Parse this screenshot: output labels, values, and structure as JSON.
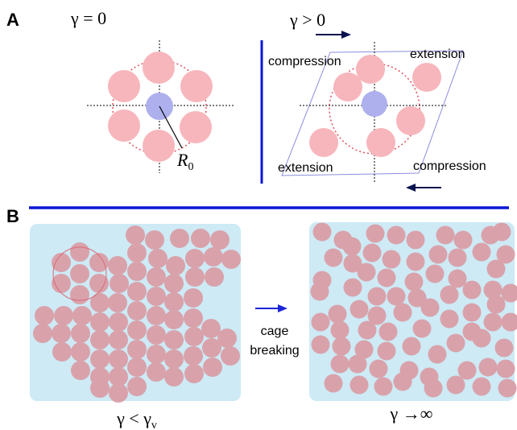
{
  "panel_a": {
    "label": "A",
    "left_title": "γ = 0",
    "right_title": "γ > 0",
    "radius_label": "R",
    "radius_subscript": "0",
    "compression_top": "compression",
    "extension_top": "extension",
    "extension_bottom": "extension",
    "compression_bottom": "compression"
  },
  "panel_b": {
    "label": "B",
    "arrow_label_line1": "cage",
    "arrow_label_line2": "breaking",
    "left_caption": "γ < γ",
    "left_caption_sub": "v",
    "right_caption": "γ →∞"
  },
  "colors": {
    "particle": "#d9a2ab",
    "cage_particle": "#f7b6bc",
    "center_particle": "#aeb0ee",
    "cage_ring": "#e0505a",
    "box_fill": "#cdeaf5",
    "divider": "#0a17d6",
    "shear_arrow": "#08124f",
    "cage_arrow": "#1a25d8",
    "sheared_frame": "#8c8ce0"
  }
}
